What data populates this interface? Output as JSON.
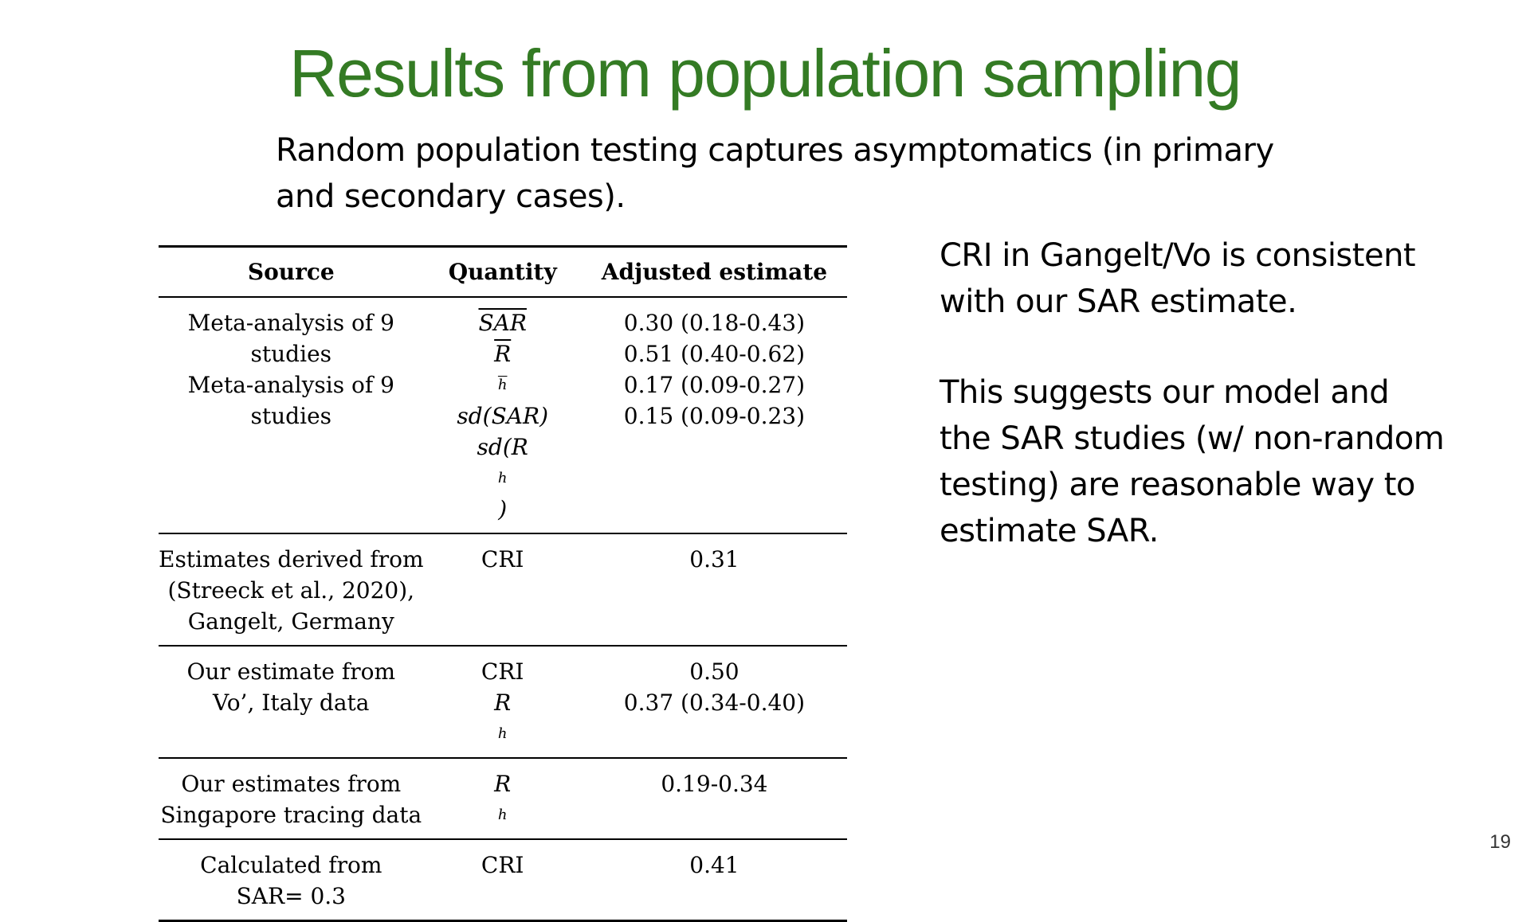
{
  "slide": {
    "title": "Results from population sampling",
    "subtitle_lines": [
      "Random population testing captures asymptomatics (in primary",
      "and secondary cases)."
    ],
    "table": {
      "headers": [
        "Source",
        "Quantity",
        "Adjusted estimate"
      ],
      "groups": [
        {
          "source_lines": [
            "Meta-analysis of 9",
            "studies",
            "Meta-analysis of 9",
            "studies"
          ],
          "quantities": [
            {
              "base": "SAR",
              "sub": ""
            },
            {
              "base": "R",
              "sub": "h"
            },
            {
              "base": "sd(SAR)",
              "sub": ""
            },
            {
              "base": "sd(R",
              "sub": "h",
              "suffix": ")"
            }
          ],
          "estimates": [
            "0.30 (0.18-0.43)",
            "0.51 (0.40-0.62)",
            "0.17 (0.09-0.27)",
            "0.15 (0.09-0.23)"
          ]
        },
        {
          "source_lines": [
            "Estimates derived from",
            "(Streeck et al., 2020),",
            "Gangelt, Germany"
          ],
          "quantities": [
            "CRI"
          ],
          "estimates": [
            "0.31"
          ]
        },
        {
          "source_lines": [
            "Our estimate from",
            "Vo’, Italy data"
          ],
          "quantities": [
            "CRI",
            "R"
          ],
          "quantity_sub": "h",
          "estimates": [
            "0.50",
            "0.37 (0.34-0.40)"
          ]
        },
        {
          "source_lines": [
            "Our estimates from",
            "Singapore tracing data"
          ],
          "quantities": [
            "R"
          ],
          "quantity_sub": "h",
          "estimates": [
            "0.19-0.34"
          ]
        },
        {
          "source_lines": [
            "Calculated from",
            "SAR= 0.3"
          ],
          "quantities": [
            "CRI"
          ],
          "estimates": [
            "0.41"
          ]
        }
      ]
    },
    "side_text": {
      "paragraph1": [
        "CRI in Gangelt/Vo is consistent",
        "with our SAR estimate."
      ],
      "paragraph2": [
        "This suggests our model and",
        "the SAR studies (w/ non-random",
        "testing) are reasonable way to",
        "estimate SAR."
      ]
    },
    "page_number": "19",
    "colors": {
      "title": "#347b24",
      "text": "#000000"
    }
  }
}
